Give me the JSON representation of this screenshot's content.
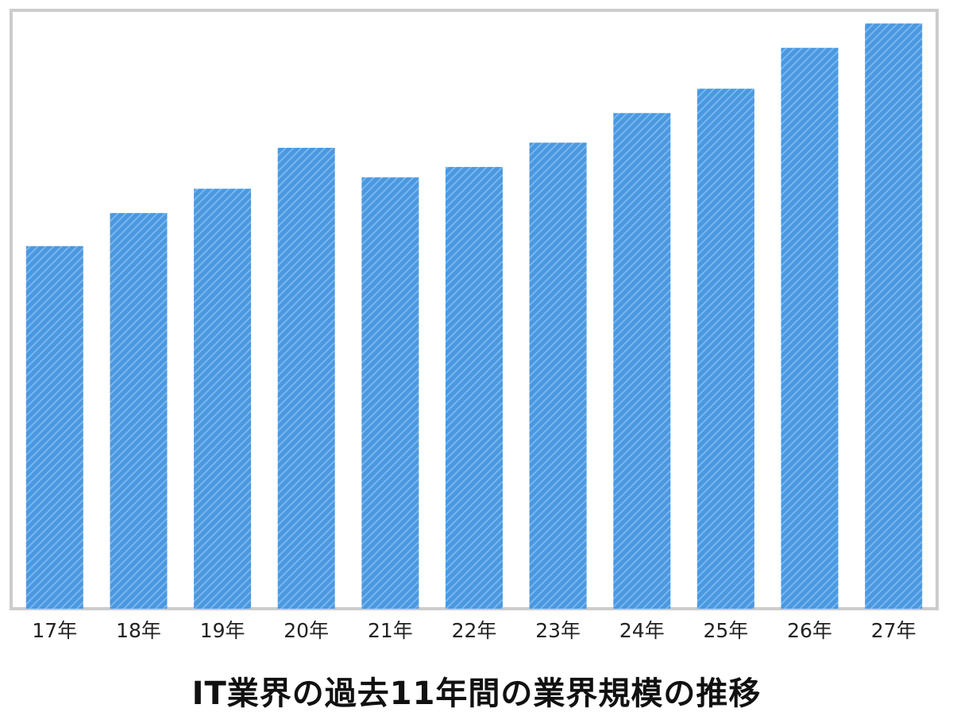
{
  "chart_data": {
    "type": "bar",
    "title": "IT業界の過去11年間の業界規模の推移",
    "categories": [
      "17年",
      "18年",
      "19年",
      "20年",
      "21年",
      "22年",
      "23年",
      "24年",
      "25年",
      "26年",
      "27年"
    ],
    "values": [
      417,
      455,
      483,
      530,
      496,
      508,
      536,
      570,
      598,
      645,
      673
    ],
    "ylim": [
      0,
      700
    ],
    "xlabel": "",
    "ylabel": "",
    "grid": false,
    "bar_color": "#4a98e0",
    "stripe_color": "#78b6ee"
  }
}
